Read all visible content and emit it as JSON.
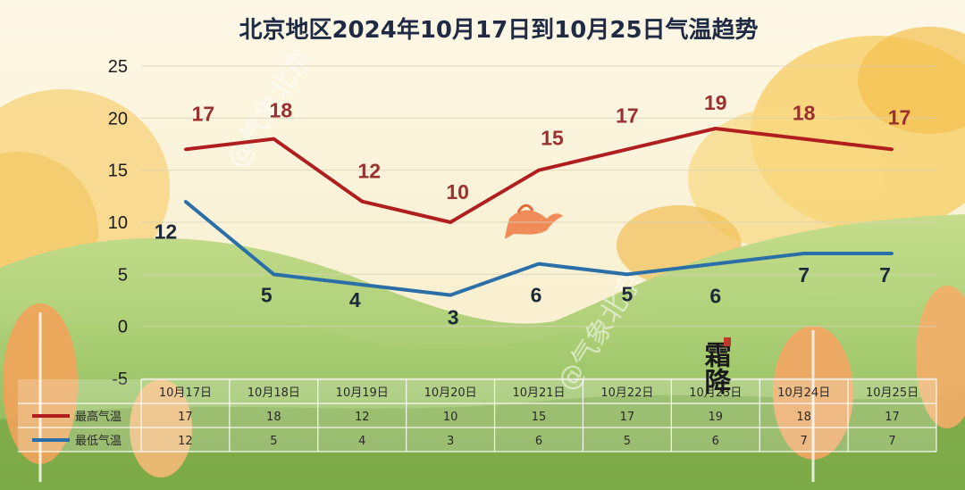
{
  "chart_data": {
    "type": "line",
    "title": "北京地区2024年10月17日到10月25日气温趋势",
    "categories": [
      "10月17日",
      "10月18日",
      "10月19日",
      "10月20日",
      "10月21日",
      "10月22日",
      "10月23日",
      "10月24日",
      "10月25日"
    ],
    "ylim": [
      -5,
      25
    ],
    "yticks": [
      -5,
      0,
      5,
      10,
      15,
      20,
      25
    ],
    "grid": true,
    "series": [
      {
        "name": "最高气温",
        "values": [
          17,
          18,
          12,
          10,
          15,
          17,
          19,
          18,
          17
        ],
        "color": "#b01e1e"
      },
      {
        "name": "最低气温",
        "values": [
          12,
          5,
          4,
          3,
          6,
          5,
          6,
          7,
          7
        ],
        "color": "#2a6fa8"
      }
    ],
    "legend": "bottom-left table"
  },
  "decor": {
    "watermark": "@气象北京",
    "stamp_text": "霜降",
    "colors": {
      "sky": "#fbf4dc",
      "hill": "#a9cf7a",
      "tree": "#f5c35a"
    }
  }
}
